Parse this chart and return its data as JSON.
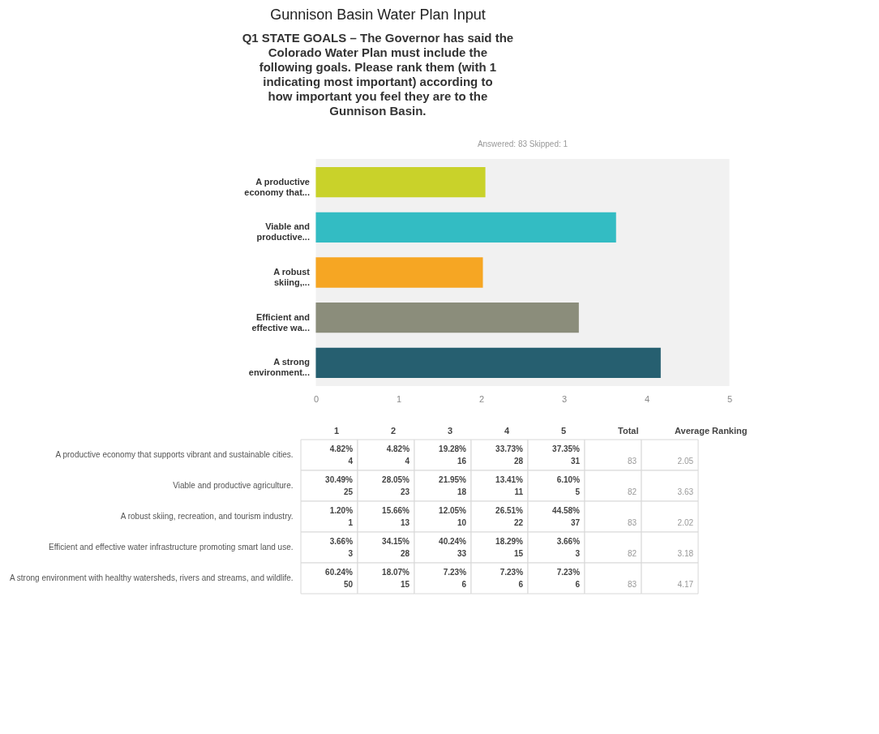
{
  "chart_data": [
    {
      "type": "bar",
      "orientation": "horizontal",
      "title": "Gunnison Basin Water Plan Input",
      "subtitle": "Q1 STATE GOALS – The Governor has said the Colorado Water Plan must include the following goals. Please rank them (with 1 indicating most important) according to how important you feel they are to the Gunnison Basin.",
      "annotations": [
        "Answered: 83    Skipped: 1"
      ],
      "categories": [
        "A productive economy that...",
        "Viable and productive...",
        "A robust skiing,...",
        "Efficient and effective wa...",
        "A strong environment..."
      ],
      "values": [
        2.05,
        3.63,
        2.02,
        3.18,
        4.17
      ],
      "colors": [
        "#c9d22a",
        "#33bcc3",
        "#f6a623",
        "#8b8d7b",
        "#265f70"
      ],
      "xlim": [
        0,
        5
      ],
      "xticks": [
        0,
        1,
        2,
        3,
        4,
        5
      ]
    },
    {
      "type": "other",
      "categories": [
        "1",
        "2",
        "3",
        "4",
        "5",
        "Total",
        "Average Ranking"
      ],
      "y_categories": [
        "A productive economy that supports vibrant and sustainable cities.",
        "Viable and productive agriculture.",
        "A robust skiing, recreation, and tourism industry.",
        "Efficient and effective water infrastructure promoting smart land use.",
        "A strong environment with healthy watersheds, rivers and streams, and wildlife."
      ],
      "cell_labels": [
        [
          "4.82%\n4",
          "4.82%\n4",
          "19.28%\n16",
          "33.73%\n28",
          "37.35%\n31",
          "83",
          "2.05"
        ],
        [
          "30.49%\n25",
          "28.05%\n23",
          "21.95%\n18",
          "13.41%\n11",
          "6.10%\n5",
          "82",
          "3.63"
        ],
        [
          "1.20%\n1",
          "15.66%\n13",
          "12.05%\n10",
          "26.51%\n22",
          "44.58%\n37",
          "83",
          "2.02"
        ],
        [
          "3.66%\n3",
          "34.15%\n28",
          "40.24%\n33",
          "18.29%\n15",
          "3.66%\n3",
          "82",
          "3.18"
        ],
        [
          "60.24%\n50",
          "18.07%\n15",
          "7.23%\n6",
          "7.23%\n6",
          "7.23%\n6",
          "83",
          "4.17"
        ]
      ]
    }
  ]
}
